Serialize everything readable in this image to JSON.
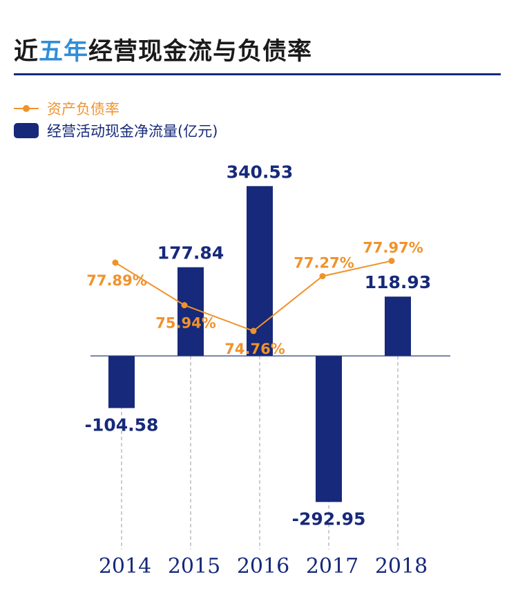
{
  "title": {
    "part1": "近",
    "part2": "五年",
    "part3": "经营现金流与负债率"
  },
  "colors": {
    "bar": "#16297a",
    "line": "#f0922b",
    "title_highlight": "#2f8ed8",
    "rule": "#16297a",
    "gridline": "#9a9a9a"
  },
  "chart_data": {
    "type": "bar",
    "categories": [
      "2014",
      "2015",
      "2016",
      "2017",
      "2018"
    ],
    "series": [
      {
        "name": "经营活动现金净流量(亿元)",
        "type": "bar",
        "values": [
          -104.58,
          177.84,
          340.53,
          -292.95,
          118.93
        ],
        "labels": [
          "-104.58",
          "177.84",
          "340.53",
          "-292.95",
          "118.93"
        ]
      },
      {
        "name": "资产负债率",
        "type": "line",
        "values": [
          77.89,
          75.94,
          74.76,
          77.27,
          77.97
        ],
        "labels": [
          "77.89%",
          "75.94%",
          "74.76%",
          "77.27%",
          "77.97%"
        ]
      }
    ],
    "legend_position": "top-left",
    "grid": false
  }
}
